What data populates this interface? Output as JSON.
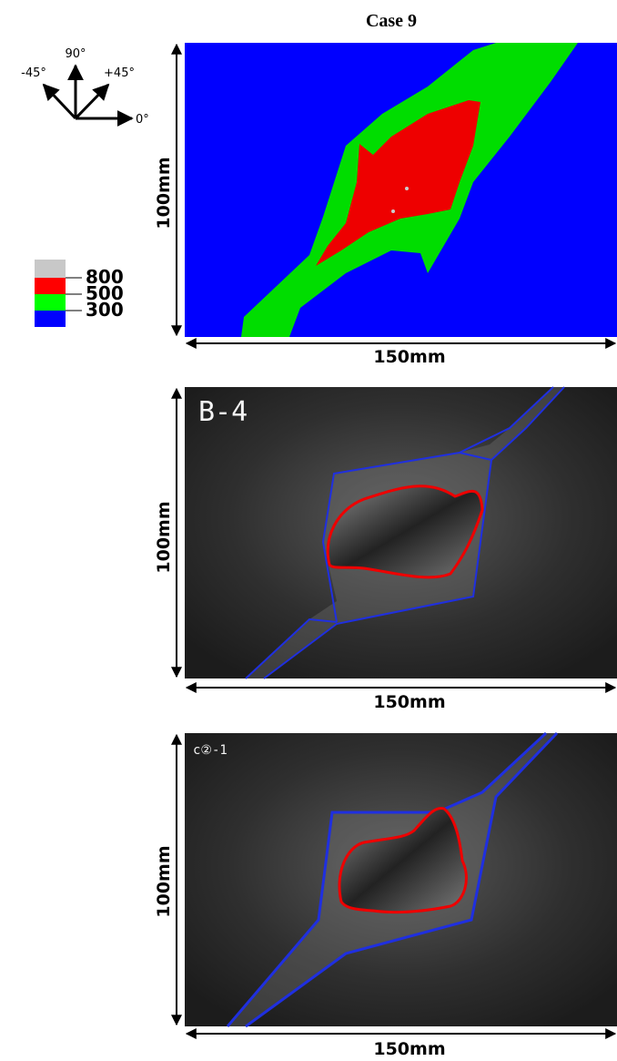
{
  "title": "Case 9",
  "orientation": {
    "labels": [
      "90°",
      "-45°",
      "+45°",
      "0°"
    ]
  },
  "legend": {
    "levels": [
      "800",
      "500",
      "300"
    ]
  },
  "panels": [
    {
      "height": "100mm",
      "width": "150mm"
    },
    {
      "label": "B-4",
      "height": "100mm",
      "width": "150mm"
    },
    {
      "label": "c②-1",
      "height": "100mm",
      "width": "150mm"
    }
  ]
}
